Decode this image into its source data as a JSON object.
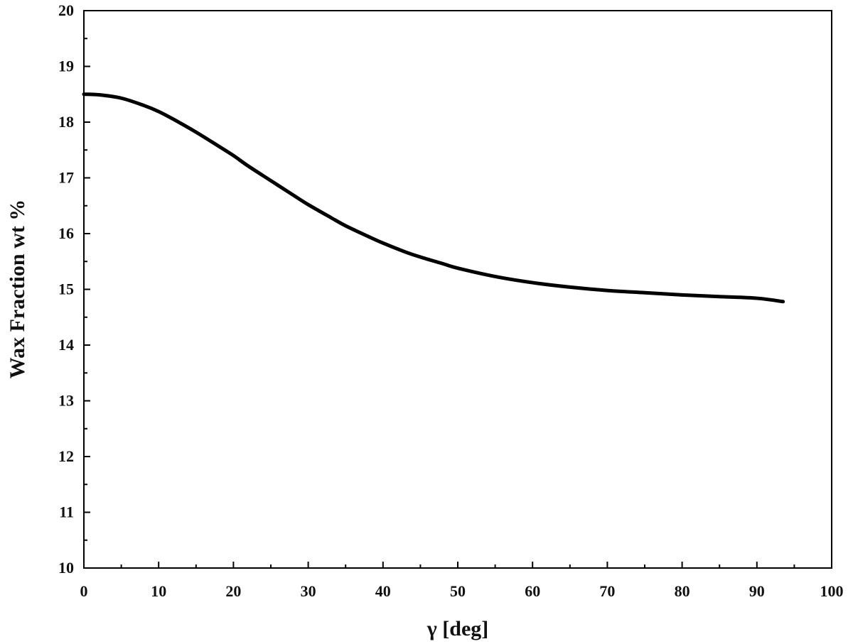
{
  "chart_data": {
    "type": "line",
    "title": "",
    "xlabel": "γ [deg]",
    "ylabel": "Wax Fraction wt %",
    "xlim": [
      0,
      100
    ],
    "ylim": [
      10,
      20
    ],
    "xticks": [
      0,
      10,
      20,
      30,
      40,
      50,
      60,
      70,
      80,
      90,
      100
    ],
    "yticks": [
      10,
      11,
      12,
      13,
      14,
      15,
      16,
      17,
      18,
      19,
      20
    ],
    "grid": false,
    "legend": "none",
    "line_color": "#000000",
    "series": [
      {
        "x": [
          0,
          2,
          5,
          8,
          10,
          12,
          15,
          18,
          20,
          22,
          25,
          28,
          30,
          33,
          35,
          38,
          40,
          43,
          45,
          48,
          50,
          55,
          60,
          65,
          70,
          75,
          80,
          85,
          90,
          93.5
        ],
        "values": [
          18.5,
          18.49,
          18.43,
          18.3,
          18.19,
          18.05,
          17.82,
          17.57,
          17.4,
          17.21,
          16.95,
          16.69,
          16.52,
          16.29,
          16.14,
          15.95,
          15.83,
          15.67,
          15.58,
          15.46,
          15.38,
          15.23,
          15.12,
          15.04,
          14.98,
          14.94,
          14.9,
          14.87,
          14.84,
          14.78
        ]
      }
    ]
  }
}
